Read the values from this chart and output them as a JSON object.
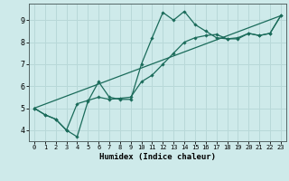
{
  "xlabel": "Humidex (Indice chaleur)",
  "background_color": "#ceeaea",
  "grid_color": "#b8d8d8",
  "line_color": "#1a6b5a",
  "xlim": [
    -0.5,
    23.5
  ],
  "ylim": [
    3.5,
    9.75
  ],
  "xticks": [
    0,
    1,
    2,
    3,
    4,
    5,
    6,
    7,
    8,
    9,
    10,
    11,
    12,
    13,
    14,
    15,
    16,
    17,
    18,
    19,
    20,
    21,
    22,
    23
  ],
  "yticks": [
    4,
    5,
    6,
    7,
    8,
    9
  ],
  "line1_x": [
    0,
    1,
    2,
    3,
    4,
    5,
    6,
    7,
    8,
    9,
    10,
    11,
    12,
    13,
    14,
    15,
    16,
    17,
    18,
    19,
    20,
    21,
    22,
    23
  ],
  "line1_y": [
    5.0,
    4.7,
    4.5,
    4.0,
    3.7,
    5.3,
    6.2,
    5.5,
    5.4,
    5.4,
    7.0,
    8.2,
    9.35,
    9.0,
    9.4,
    8.8,
    8.5,
    8.2,
    8.15,
    8.15,
    8.4,
    8.3,
    8.4,
    9.2
  ],
  "line2_x": [
    0,
    1,
    2,
    3,
    4,
    5,
    6,
    7,
    8,
    9,
    10,
    11,
    12,
    13,
    14,
    15,
    16,
    17,
    18,
    19,
    20,
    21,
    22,
    23
  ],
  "line2_y": [
    5.0,
    4.7,
    4.5,
    4.0,
    5.2,
    5.35,
    5.5,
    5.4,
    5.45,
    5.5,
    6.2,
    6.5,
    7.0,
    7.5,
    8.0,
    8.2,
    8.3,
    8.35,
    8.15,
    8.2,
    8.4,
    8.3,
    8.4,
    9.2
  ],
  "line3_x": [
    0,
    23
  ],
  "line3_y": [
    5.0,
    9.2
  ]
}
